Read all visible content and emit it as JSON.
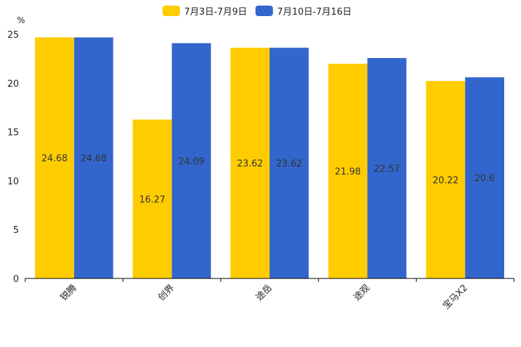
{
  "chart_data": {
    "type": "bar",
    "title": "",
    "xlabel": "",
    "ylabel": "%",
    "ylim": [
      0,
      25
    ],
    "yticks": [
      0,
      5,
      10,
      15,
      20,
      25
    ],
    "categories": [
      "锐腾",
      "创界",
      "途岳",
      "途观",
      "宝马X2"
    ],
    "series": [
      {
        "name": "7月3日-7月9日",
        "color": "#FFCC00",
        "values": [
          24.68,
          16.27,
          23.62,
          21.98,
          20.22
        ],
        "labels": [
          "24.68",
          "16.27",
          "23.62",
          "21.98",
          "20.22"
        ]
      },
      {
        "name": "7月10日-7月16日",
        "color": "#3366CC",
        "values": [
          24.68,
          24.09,
          23.62,
          22.57,
          20.6
        ],
        "labels": [
          "24.68",
          "24.09",
          "23.62",
          "22.57",
          "20.6"
        ]
      }
    ],
    "grid": false,
    "legend": "top-center"
  }
}
